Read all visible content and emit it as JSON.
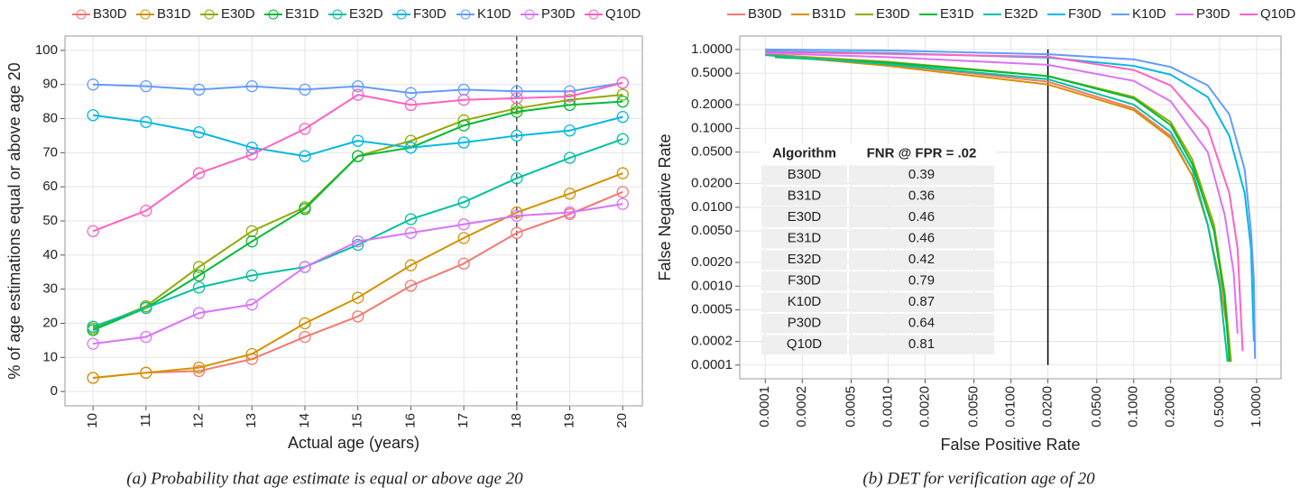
{
  "chart_data": [
    {
      "type": "line",
      "marker": "circle",
      "grid": true,
      "xlabel": "Actual age (years)",
      "ylabel": "% of age estimations equal or above age 20",
      "caption": "(a) Probability that age estimate is equal or above age 20",
      "xlim": [
        9.47,
        20.37
      ],
      "xticks": [
        10,
        11,
        12,
        13,
        14,
        15,
        16,
        17,
        18,
        19,
        20
      ],
      "ylim": [
        -4.2,
        104.2
      ],
      "yticks": [
        0,
        10,
        20,
        30,
        40,
        50,
        60,
        70,
        80,
        90,
        100
      ],
      "vline": 18,
      "x": [
        10,
        11,
        12,
        13,
        14,
        15,
        16,
        17,
        18,
        19,
        20
      ],
      "series": [
        {
          "name": "B30D",
          "color": "#F8766D",
          "values": [
            4,
            5.5,
            6,
            9.5,
            16,
            22,
            31,
            37.5,
            46.5,
            52,
            58.5
          ]
        },
        {
          "name": "B31D",
          "color": "#D39200",
          "values": [
            4,
            5.5,
            7,
            11,
            20,
            27.5,
            37,
            45,
            52.5,
            58,
            64
          ]
        },
        {
          "name": "E30D",
          "color": "#93AA00",
          "values": [
            18.5,
            25,
            36.5,
            47,
            54,
            69,
            73.5,
            79.5,
            83,
            85.5,
            87
          ]
        },
        {
          "name": "E31D",
          "color": "#00BA38",
          "values": [
            18,
            24.5,
            34,
            44,
            53.5,
            69,
            71.5,
            78,
            82,
            84,
            85
          ]
        },
        {
          "name": "E32D",
          "color": "#00C19F",
          "values": [
            19,
            24.5,
            30.5,
            34,
            36.5,
            43,
            50.5,
            55.5,
            62.5,
            68.5,
            74
          ]
        },
        {
          "name": "F30D",
          "color": "#00B9E3",
          "values": [
            81,
            79,
            76,
            71.5,
            69,
            73.5,
            71.5,
            73,
            75,
            76.5,
            80.5
          ]
        },
        {
          "name": "K10D",
          "color": "#619CFF",
          "values": [
            90,
            89.5,
            88.5,
            89.5,
            88.5,
            89.5,
            87.5,
            88.5,
            88,
            88,
            90.5
          ]
        },
        {
          "name": "P30D",
          "color": "#DB72FB",
          "values": [
            14,
            16,
            23,
            25.5,
            36.5,
            44,
            46.5,
            49,
            51.5,
            52.5,
            55
          ]
        },
        {
          "name": "Q10D",
          "color": "#FF61C3",
          "values": [
            47,
            53,
            64,
            69.5,
            77,
            87,
            84,
            85.5,
            86,
            86.5,
            90.5
          ]
        }
      ]
    },
    {
      "type": "line",
      "log_x": true,
      "log_y": true,
      "grid": true,
      "xlabel": "False Positive Rate",
      "ylabel": "False Negative Rate",
      "caption": "(b) DET for verification age of 20",
      "xlim": [
        6.2e-05,
        1.58
      ],
      "ylim": [
        6.7e-05,
        1.48
      ],
      "xticks": [
        0.0001,
        0.0002,
        0.0005,
        {
          "value": 0.001,
          "label": "0.0010"
        },
        {
          "value": 0.002,
          "label": "0.0020"
        },
        {
          "value": 0.005,
          "label": "0.0050"
        },
        {
          "value": 0.01,
          "label": "0.0100"
        },
        {
          "value": 0.02,
          "label": "0.0200"
        },
        {
          "value": 0.05,
          "label": "0.0500"
        },
        {
          "value": 0.1,
          "label": "0.1000"
        },
        {
          "value": 0.2,
          "label": "0.2000"
        },
        {
          "value": 0.5,
          "label": "0.5000"
        },
        {
          "value": 1,
          "label": "1.0000"
        }
      ],
      "yticks": [
        0.0001,
        0.0002,
        0.0005,
        {
          "value": 0.001,
          "label": "0.0010"
        },
        {
          "value": 0.002,
          "label": "0.0020"
        },
        {
          "value": 0.005,
          "label": "0.0050"
        },
        {
          "value": 0.01,
          "label": "0.0100"
        },
        {
          "value": 0.02,
          "label": "0.0200"
        },
        {
          "value": 0.05,
          "label": "0.0500"
        },
        {
          "value": 0.1,
          "label": "0.1000"
        },
        {
          "value": 0.2,
          "label": "0.2000"
        },
        {
          "value": 0.5,
          "label": "0.5000"
        },
        {
          "value": 1,
          "label": "1.0000"
        }
      ],
      "vline": 0.02,
      "series": [
        {
          "name": "B30D",
          "color": "#F8766D",
          "x": [
            0.0001,
            0.001,
            0.02,
            0.1,
            0.2,
            0.3,
            0.4,
            0.5,
            0.6
          ],
          "values": [
            0.88,
            0.65,
            0.39,
            0.18,
            0.08,
            0.025,
            0.006,
            0.0012,
            0.0002
          ]
        },
        {
          "name": "B31D",
          "color": "#D39200",
          "x": [
            0.0001,
            0.001,
            0.02,
            0.1,
            0.2,
            0.3,
            0.4,
            0.5,
            0.6
          ],
          "values": [
            0.86,
            0.62,
            0.36,
            0.17,
            0.075,
            0.025,
            0.006,
            0.0012,
            0.0002
          ]
        },
        {
          "name": "E30D",
          "color": "#93AA00",
          "x": [
            0.00012,
            0.001,
            0.02,
            0.1,
            0.2,
            0.3,
            0.45,
            0.55,
            0.62
          ],
          "values": [
            0.85,
            0.7,
            0.46,
            0.25,
            0.12,
            0.04,
            0.006,
            0.0008,
            0.00011
          ]
        },
        {
          "name": "E31D",
          "color": "#00BA38",
          "x": [
            0.00012,
            0.001,
            0.02,
            0.1,
            0.2,
            0.3,
            0.45,
            0.55,
            0.6
          ],
          "values": [
            0.8,
            0.68,
            0.46,
            0.24,
            0.11,
            0.035,
            0.005,
            0.0007,
            0.00011
          ]
        },
        {
          "name": "E32D",
          "color": "#00C19F",
          "x": [
            0.0001,
            0.001,
            0.02,
            0.1,
            0.2,
            0.3,
            0.4,
            0.5,
            0.58
          ],
          "values": [
            0.85,
            0.65,
            0.42,
            0.2,
            0.09,
            0.03,
            0.006,
            0.001,
            0.00011
          ]
        },
        {
          "name": "F30D",
          "color": "#00B9E3",
          "x": [
            0.0001,
            0.001,
            0.02,
            0.1,
            0.2,
            0.4,
            0.6,
            0.8,
            0.9,
            0.95
          ],
          "values": [
            0.95,
            0.9,
            0.79,
            0.62,
            0.48,
            0.25,
            0.08,
            0.015,
            0.003,
            0.0002
          ]
        },
        {
          "name": "K10D",
          "color": "#619CFF",
          "x": [
            0.0001,
            0.001,
            0.02,
            0.1,
            0.2,
            0.4,
            0.6,
            0.8,
            0.9,
            0.95,
            0.97
          ],
          "values": [
            1,
            0.97,
            0.87,
            0.75,
            0.6,
            0.35,
            0.15,
            0.03,
            0.005,
            0.0012,
            0.00012
          ]
        },
        {
          "name": "P30D",
          "color": "#DB72FB",
          "x": [
            0.0001,
            0.001,
            0.02,
            0.1,
            0.2,
            0.4,
            0.55,
            0.65,
            0.7
          ],
          "values": [
            0.9,
            0.8,
            0.64,
            0.4,
            0.22,
            0.05,
            0.008,
            0.0015,
            0.00025
          ]
        },
        {
          "name": "Q10D",
          "color": "#FF61C3",
          "x": [
            0.0001,
            0.001,
            0.02,
            0.1,
            0.2,
            0.4,
            0.6,
            0.7,
            0.77
          ],
          "values": [
            0.93,
            0.88,
            0.81,
            0.55,
            0.35,
            0.1,
            0.015,
            0.003,
            0.00015
          ]
        }
      ],
      "table": {
        "columns": [
          "Algorithm",
          "FNR @ FPR = .02"
        ],
        "rows": [
          [
            "B30D",
            0.39
          ],
          [
            "B31D",
            0.36
          ],
          [
            "E30D",
            0.46
          ],
          [
            "E31D",
            0.46
          ],
          [
            "E32D",
            0.42
          ],
          [
            "F30D",
            0.79
          ],
          [
            "K10D",
            0.87
          ],
          [
            "P30D",
            0.64
          ],
          [
            "Q10D",
            0.81
          ]
        ]
      }
    }
  ]
}
